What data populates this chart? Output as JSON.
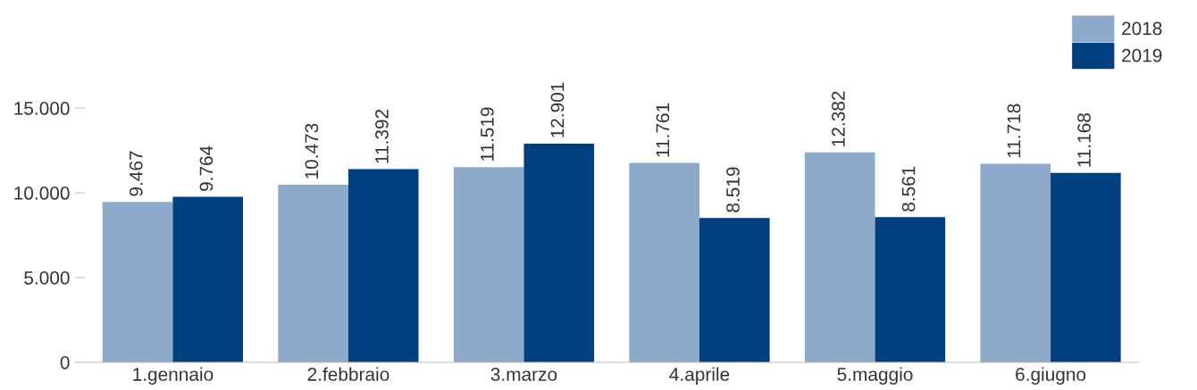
{
  "chart_data": {
    "type": "bar",
    "categories": [
      "1.gennaio",
      "2.febbraio",
      "3.marzo",
      "4.aprile",
      "5.maggio",
      "6.giugno"
    ],
    "series": [
      {
        "name": "2018",
        "color": "#8eaacb",
        "values": [
          9467,
          10473,
          11519,
          11761,
          12382,
          11718
        ],
        "value_labels": [
          "9.467",
          "10.473",
          "11.519",
          "11.761",
          "12.382",
          "11.718"
        ]
      },
      {
        "name": "2019",
        "color": "#003f80",
        "values": [
          9764,
          11392,
          12901,
          8519,
          8561,
          11168
        ],
        "value_labels": [
          "9.764",
          "11.392",
          "12.901",
          "8.519",
          "8.561",
          "11.168"
        ]
      }
    ],
    "ylim": [
      0,
      15000
    ],
    "yticks": [
      {
        "value": 0,
        "label": "0"
      },
      {
        "value": 5000,
        "label": "5.000"
      },
      {
        "value": 10000,
        "label": "10.000"
      },
      {
        "value": 15000,
        "label": "15.000"
      }
    ],
    "grid": false,
    "legend": "top right"
  }
}
